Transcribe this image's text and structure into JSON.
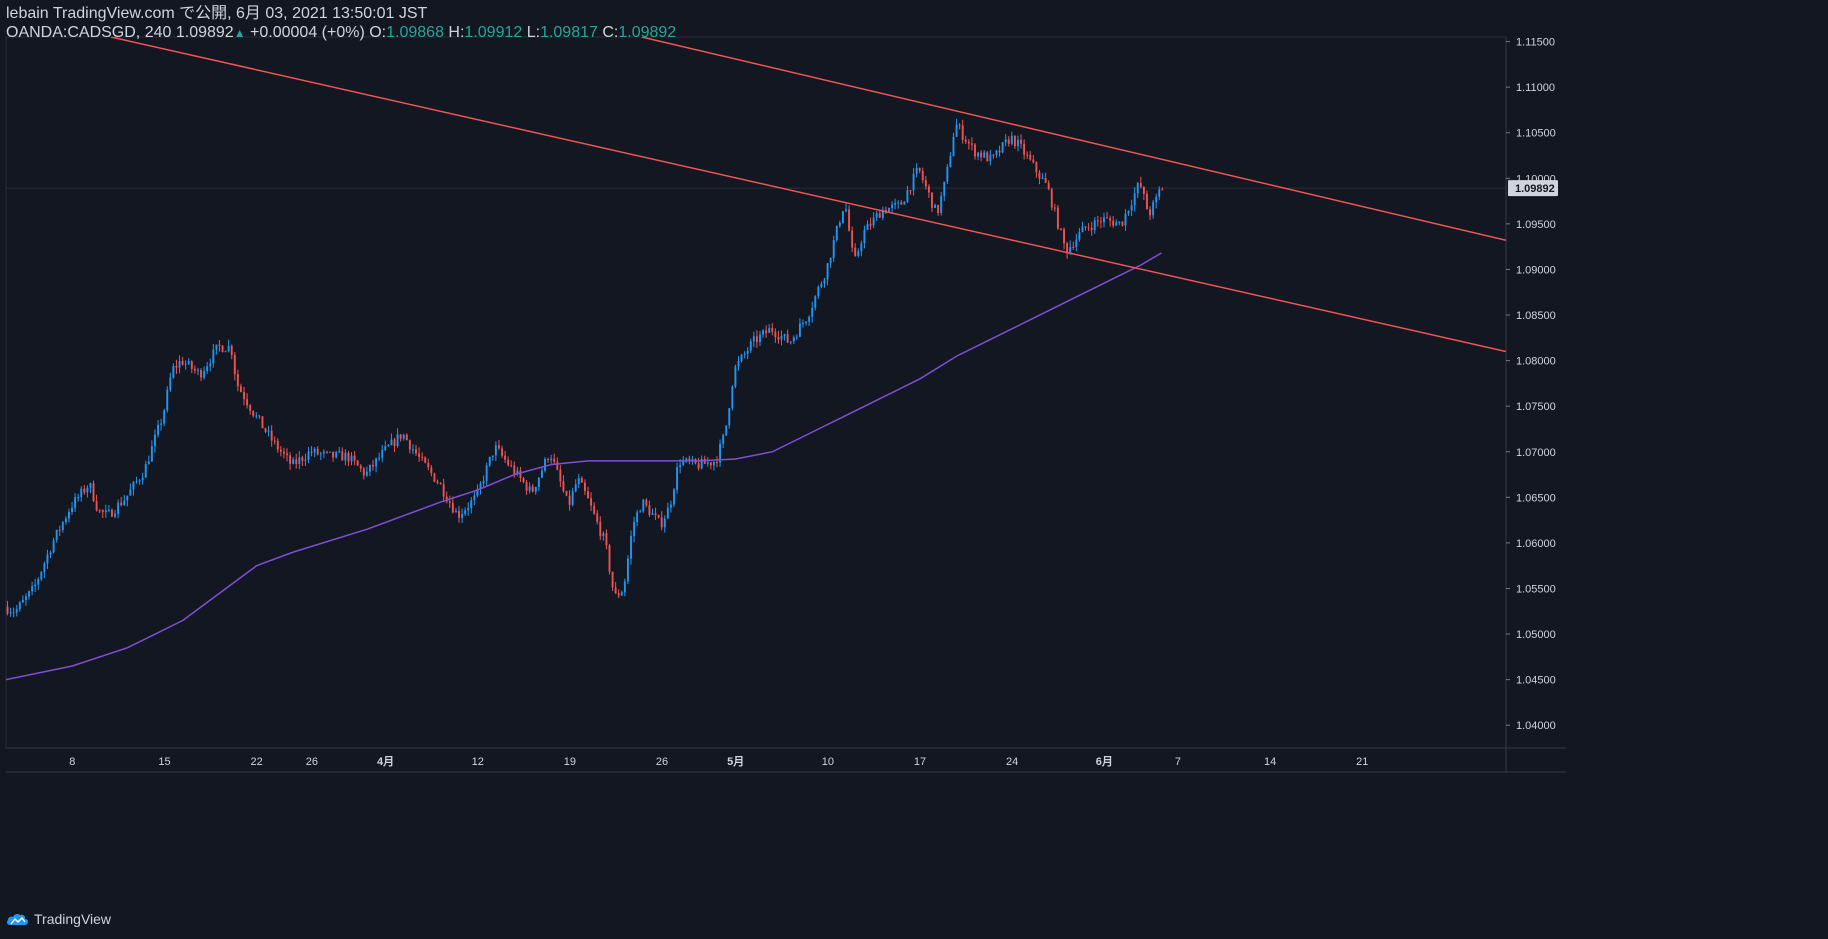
{
  "header": {
    "published": "lebain TradingView.com で公開, 6月 03, 2021 13:50:01 JST",
    "symbol": "OANDA:CADSGD, 240",
    "last": "1.09892",
    "change": "+0.00004 (+0%)",
    "o_label": "O:",
    "o_value": "1.09868",
    "h_label": "H:",
    "h_value": "1.09912",
    "l_label": "L:",
    "l_value": "1.09817",
    "c_label": "C:",
    "c_value": "1.09892"
  },
  "footer": {
    "brand": "TradingView"
  },
  "colors": {
    "background": "#131722",
    "up": "#2196f3",
    "down": "#ef5350",
    "trendline": "#f05454",
    "ma": "#7e4fd6",
    "axis_text": "#d1d4dc",
    "grid": "#2a2e39"
  },
  "chart_data": {
    "type": "candlestick",
    "title": "OANDA:CADSGD, 240",
    "ylim": [
      1.0375,
      1.1155
    ],
    "price_ticks": [
      "1.11500",
      "1.11000",
      "1.10500",
      "1.10000",
      "1.09500",
      "1.09000",
      "1.08500",
      "1.08000",
      "1.07500",
      "1.07000",
      "1.06500",
      "1.06000",
      "1.05500",
      "1.05000",
      "1.04500",
      "1.04000"
    ],
    "current_price_label": "1.09892",
    "current_price": 1.09892,
    "time_ticks": [
      "8",
      "15",
      "22",
      "26",
      "4月",
      "12",
      "19",
      "26",
      "5月",
      "10",
      "17",
      "24",
      "6月",
      "7",
      "14",
      "21"
    ],
    "time_tick_index": [
      0,
      5,
      10,
      13,
      17,
      22,
      27,
      32,
      36,
      41,
      46,
      51,
      56,
      60,
      65,
      70
    ],
    "trading_days_range": [
      -3.6,
      77.8
    ],
    "last_candle_index": 59.1,
    "price_path": [
      [
        -3.6,
        1.053
      ],
      [
        -3,
        1.0525
      ],
      [
        -2,
        1.055
      ],
      [
        -1,
        1.06
      ],
      [
        0,
        1.064
      ],
      [
        1,
        1.0665
      ],
      [
        1.5,
        1.0635
      ],
      [
        2,
        1.063
      ],
      [
        3,
        1.065
      ],
      [
        4,
        1.068
      ],
      [
        5,
        1.074
      ],
      [
        5.5,
        1.079
      ],
      [
        6,
        1.08
      ],
      [
        7,
        1.0785
      ],
      [
        8,
        1.0815
      ],
      [
        8.7,
        1.0815
      ],
      [
        9,
        1.0775
      ],
      [
        10,
        1.074
      ],
      [
        11,
        1.071
      ],
      [
        12,
        1.0685
      ],
      [
        13,
        1.07
      ],
      [
        14,
        1.0695
      ],
      [
        15,
        1.0695
      ],
      [
        16,
        1.0675
      ],
      [
        17,
        1.07
      ],
      [
        18,
        1.072
      ],
      [
        19,
        1.069
      ],
      [
        20,
        1.0665
      ],
      [
        21,
        1.063
      ],
      [
        22,
        1.065
      ],
      [
        23,
        1.0705
      ],
      [
        24,
        1.068
      ],
      [
        25,
        1.0655
      ],
      [
        26,
        1.07
      ],
      [
        27,
        1.064
      ],
      [
        27.5,
        1.067
      ],
      [
        28,
        1.065
      ],
      [
        29,
        1.06
      ],
      [
        29.5,
        1.054
      ],
      [
        30,
        1.055
      ],
      [
        30.5,
        1.062
      ],
      [
        31,
        1.0645
      ],
      [
        32,
        1.062
      ],
      [
        32.5,
        1.064
      ],
      [
        33,
        1.069
      ],
      [
        34,
        1.0685
      ],
      [
        35,
        1.069
      ],
      [
        35.5,
        1.072
      ],
      [
        36,
        1.079
      ],
      [
        37,
        1.082
      ],
      [
        38,
        1.0835
      ],
      [
        39,
        1.082
      ],
      [
        40,
        1.085
      ],
      [
        41,
        1.09
      ],
      [
        42,
        1.0975
      ],
      [
        42.5,
        1.0905
      ],
      [
        43,
        1.094
      ],
      [
        44,
        1.0965
      ],
      [
        45,
        1.097
      ],
      [
        46,
        1.101
      ],
      [
        47,
        1.096
      ],
      [
        47.5,
        1.1
      ],
      [
        48,
        1.106
      ],
      [
        49,
        1.103
      ],
      [
        50,
        1.102
      ],
      [
        51,
        1.1045
      ],
      [
        51.5,
        1.1035
      ],
      [
        52,
        1.102
      ],
      [
        53,
        1.099
      ],
      [
        54,
        1.092
      ],
      [
        55,
        1.0945
      ],
      [
        56,
        1.0955
      ],
      [
        57,
        1.095
      ],
      [
        58,
        1.0995
      ],
      [
        58.5,
        1.096
      ],
      [
        59,
        1.098
      ],
      [
        59.1,
        1.0989
      ]
    ],
    "ma_path": [
      [
        -3.6,
        1.045
      ],
      [
        0,
        1.0465
      ],
      [
        3,
        1.0485
      ],
      [
        6,
        1.0515
      ],
      [
        8,
        1.0545
      ],
      [
        10,
        1.0575
      ],
      [
        12,
        1.059
      ],
      [
        16,
        1.0615
      ],
      [
        20,
        1.0645
      ],
      [
        22,
        1.0658
      ],
      [
        24,
        1.0675
      ],
      [
        26,
        1.0686
      ],
      [
        28,
        1.069
      ],
      [
        30,
        1.069
      ],
      [
        34,
        1.069
      ],
      [
        36,
        1.0692
      ],
      [
        38,
        1.07
      ],
      [
        40,
        1.072
      ],
      [
        42,
        1.074
      ],
      [
        44,
        1.076
      ],
      [
        46,
        1.078
      ],
      [
        48,
        1.0805
      ],
      [
        50,
        1.0825
      ],
      [
        52,
        1.0845
      ],
      [
        54,
        1.0865
      ],
      [
        56,
        1.0885
      ],
      [
        58,
        1.0905
      ],
      [
        59.1,
        1.0918
      ]
    ],
    "trendlines": [
      {
        "name": "upper-channel",
        "points": [
          [
            30.9,
            1.1155
          ],
          [
            77.8,
            1.0932
          ]
        ]
      },
      {
        "name": "lower-channel",
        "points": [
          [
            2.1,
            1.1155
          ],
          [
            77.8,
            1.081
          ]
        ]
      }
    ],
    "series": [
      {
        "name": "CADSGD",
        "type": "candles"
      },
      {
        "name": "moving-average",
        "type": "line"
      }
    ]
  }
}
